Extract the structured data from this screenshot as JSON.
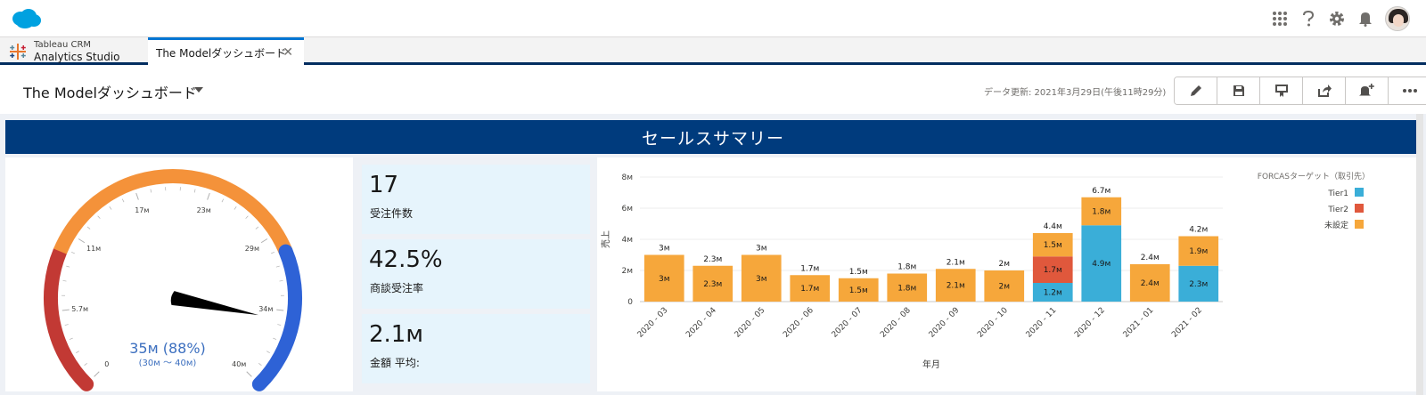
{
  "app": {
    "name_line1": "Tableau CRM",
    "name_line2": "Analytics Studio"
  },
  "tabs": [
    {
      "label": "The Modelダッシュボード"
    }
  ],
  "header": {
    "title": "The Modelダッシュボード",
    "refresh": "データ更新: 2021年3月29日(午後11時29分)",
    "icons": [
      "edit-icon",
      "save-icon",
      "bookmark-icon",
      "share-icon",
      "notification-add-icon",
      "more-icon"
    ]
  },
  "top_icons": [
    "app-launcher-icon",
    "help-icon",
    "setup-gear-icon",
    "notification-bell-icon"
  ],
  "banner": "セールスサマリー",
  "gauge": {
    "value": 35,
    "pct": 88,
    "value_text": "35м (88%)",
    "range_text": "(30м 〜 40м)",
    "min": 0,
    "max": 40,
    "tick_labels": [
      "0",
      "5.7м",
      "11м",
      "17м",
      "23м",
      "29м",
      "34м",
      "40м"
    ],
    "colors": {
      "low": "#c23934",
      "mid": "#f4923a",
      "high": "#2e62d6"
    }
  },
  "kpis": [
    {
      "value": "17",
      "label": "受注件数"
    },
    {
      "value": "42.5%",
      "label": "商談受注率"
    },
    {
      "value": "2.1м",
      "label": "金額 平均:"
    }
  ],
  "chart_data": {
    "type": "bar",
    "stacked": true,
    "categories": [
      "2020 - 03",
      "2020 - 04",
      "2020 - 05",
      "2020 - 06",
      "2020 - 07",
      "2020 - 08",
      "2020 - 09",
      "2020 - 10",
      "2020 - 11",
      "2020 - 12",
      "2021 - 01",
      "2021 - 02"
    ],
    "series": [
      {
        "name": "Tier1",
        "color": "#3aaed8",
        "values": [
          0,
          0,
          0,
          0,
          0,
          0,
          0,
          0,
          1.2,
          4.9,
          0,
          2.3
        ],
        "labels": [
          "",
          "",
          "",
          "",
          "",
          "",
          "",
          "",
          "1.2м",
          "4.9м",
          "",
          "2.3м"
        ]
      },
      {
        "name": "Tier2",
        "color": "#e0583c",
        "values": [
          0,
          0,
          0,
          0,
          0,
          0,
          0,
          0,
          1.7,
          0,
          0,
          0
        ],
        "labels": [
          "",
          "",
          "",
          "",
          "",
          "",
          "",
          "",
          "1.7м",
          "",
          "",
          ""
        ]
      },
      {
        "name": "未設定",
        "color": "#f6a73b",
        "values": [
          3,
          2.3,
          3,
          1.7,
          1.5,
          1.8,
          2.1,
          2,
          1.5,
          1.8,
          2.4,
          1.9
        ],
        "labels": [
          "3м",
          "2.3м",
          "3м",
          "1.7м",
          "1.5м",
          "1.8м",
          "2.1м",
          "2м",
          "1.5м",
          "1.8м",
          "2.4м",
          "1.9м"
        ]
      }
    ],
    "totals": [
      "3м",
      "2.3м",
      "3м",
      "1.7м",
      "1.5м",
      "1.8м",
      "2.1м",
      "2м",
      "4.4м",
      "6.7м",
      "2.4м",
      "4.2м"
    ],
    "ylim": [
      0,
      8
    ],
    "yticks": [
      0,
      2,
      4,
      6,
      8
    ],
    "ytick_labels": [
      "0",
      "2м",
      "4м",
      "6м",
      "8м"
    ],
    "xlabel": "年月",
    "ylabel": "売上",
    "legend_title": "FORCASターゲット（取引先）",
    "legend_position": "top-right",
    "grid": true
  }
}
